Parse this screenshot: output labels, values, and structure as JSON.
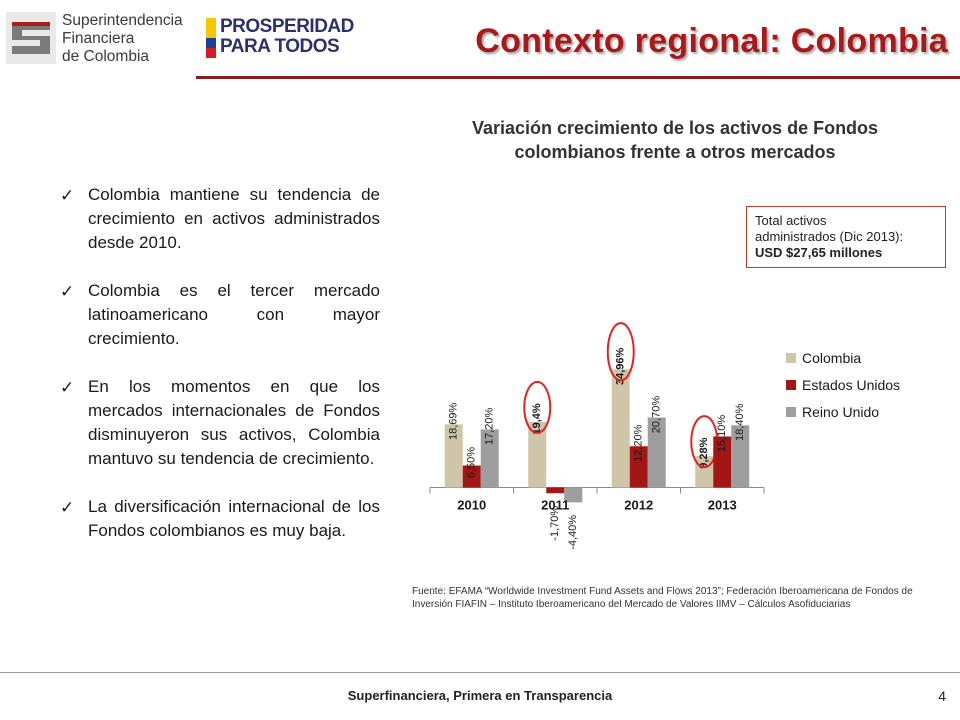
{
  "header": {
    "logo_sfc_lines": [
      "Superintendencia",
      "Financiera",
      "de Colombia"
    ],
    "logo_prosperidad_lines": [
      "PROSPERIDAD",
      "PARA TODOS"
    ],
    "title": "Contexto regional: Colombia"
  },
  "bullets": [
    "Colombia mantiene su tendencia de crecimiento en activos administrados desde 2010.",
    "Colombia es el tercer mercado latinoamericano con mayor crecimiento.",
    "En los momentos en que los mercados internacionales de Fondos disminuyeron sus activos, Colombia mantuvo su tendencia de crecimiento.",
    "La diversificación internacional de los Fondos colombianos es muy baja."
  ],
  "chart_title_lines": [
    "Variación crecimiento de los activos de Fondos",
    "colombianos frente a otros mercados"
  ],
  "total_box": {
    "line1": "Total activos",
    "line2": "administrados (Dic 2013):",
    "line3": "USD $27,65 millones"
  },
  "chart_data": {
    "type": "bar",
    "title": "Variación crecimiento de los activos de Fondos colombianos frente a otros mercados",
    "categories": [
      "2010",
      "2011",
      "2012",
      "2013"
    ],
    "series": [
      {
        "name": "Colombia",
        "color": "#cfc6aa",
        "values": [
          18.69,
          19.4,
          34.96,
          9.28
        ],
        "labels": [
          "18,69%",
          "19,4%",
          "34,96%",
          "9,28%"
        ]
      },
      {
        "name": "Estados Unidos",
        "color": "#a31616",
        "values": [
          6.5,
          -1.7,
          12.2,
          15.1
        ],
        "labels": [
          "6,50%",
          "-1,70%",
          "12,20%",
          "15,10%"
        ]
      },
      {
        "name": "Reino Unido",
        "color": "#9e9e9e",
        "values": [
          17.2,
          -4.4,
          20.7,
          18.4
        ],
        "labels": [
          "17,20%",
          "-4,40%",
          "20,70%",
          "18,40%"
        ]
      }
    ],
    "highlighted_labels": [
      "19,4%",
      "9,28%",
      "34,96%"
    ],
    "legend_position": "right",
    "grid": false
  },
  "source_text": "Fuente: EFAMA “Worldwide Investment Fund Assets and Flows 2013”; Federación Iberoamericana de Fondos de Inversión FIAFIN – Instituto Iberoamericano del Mercado de Valores IIMV – Cálculos Asofiduciarias",
  "footer": {
    "text": "Superfinanciera, Primera en Transparencia",
    "page_number": "4"
  }
}
